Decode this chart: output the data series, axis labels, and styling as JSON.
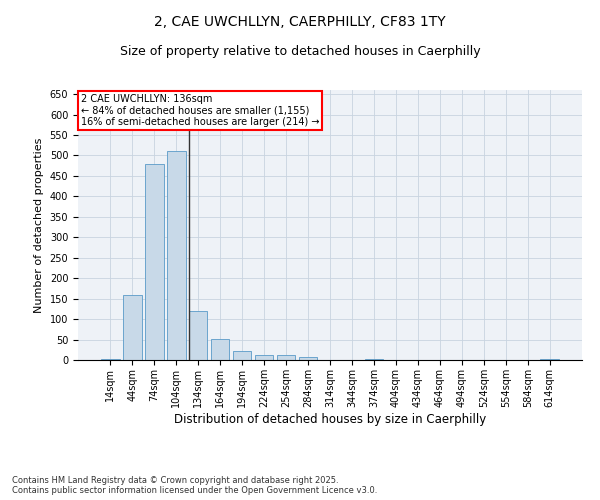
{
  "title_line1": "2, CAE UWCHLLYN, CAERPHILLY, CF83 1TY",
  "title_line2": "Size of property relative to detached houses in Caerphilly",
  "xlabel": "Distribution of detached houses by size in Caerphilly",
  "ylabel": "Number of detached properties",
  "categories": [
    "14sqm",
    "44sqm",
    "74sqm",
    "104sqm",
    "134sqm",
    "164sqm",
    "194sqm",
    "224sqm",
    "254sqm",
    "284sqm",
    "314sqm",
    "344sqm",
    "374sqm",
    "404sqm",
    "434sqm",
    "464sqm",
    "494sqm",
    "524sqm",
    "554sqm",
    "584sqm",
    "614sqm"
  ],
  "values": [
    3,
    160,
    480,
    510,
    120,
    52,
    22,
    12,
    12,
    8,
    0,
    0,
    3,
    0,
    0,
    0,
    0,
    0,
    0,
    0,
    3
  ],
  "bar_color": "#c8d9e8",
  "bar_edge_color": "#5a9ac8",
  "vline_color": "#333333",
  "annotation_text": "2 CAE UWCHLLYN: 136sqm\n← 84% of detached houses are smaller (1,155)\n16% of semi-detached houses are larger (214) →",
  "annotation_box_color": "white",
  "annotation_box_edge": "red",
  "ylim": [
    0,
    660
  ],
  "yticks": [
    0,
    50,
    100,
    150,
    200,
    250,
    300,
    350,
    400,
    450,
    500,
    550,
    600,
    650
  ],
  "grid_color": "#c8d4e0",
  "background_color": "#eef2f7",
  "footer_line1": "Contains HM Land Registry data © Crown copyright and database right 2025.",
  "footer_line2": "Contains public sector information licensed under the Open Government Licence v3.0.",
  "title_fontsize": 10,
  "subtitle_fontsize": 9,
  "tick_fontsize": 7,
  "xlabel_fontsize": 8.5,
  "ylabel_fontsize": 8
}
